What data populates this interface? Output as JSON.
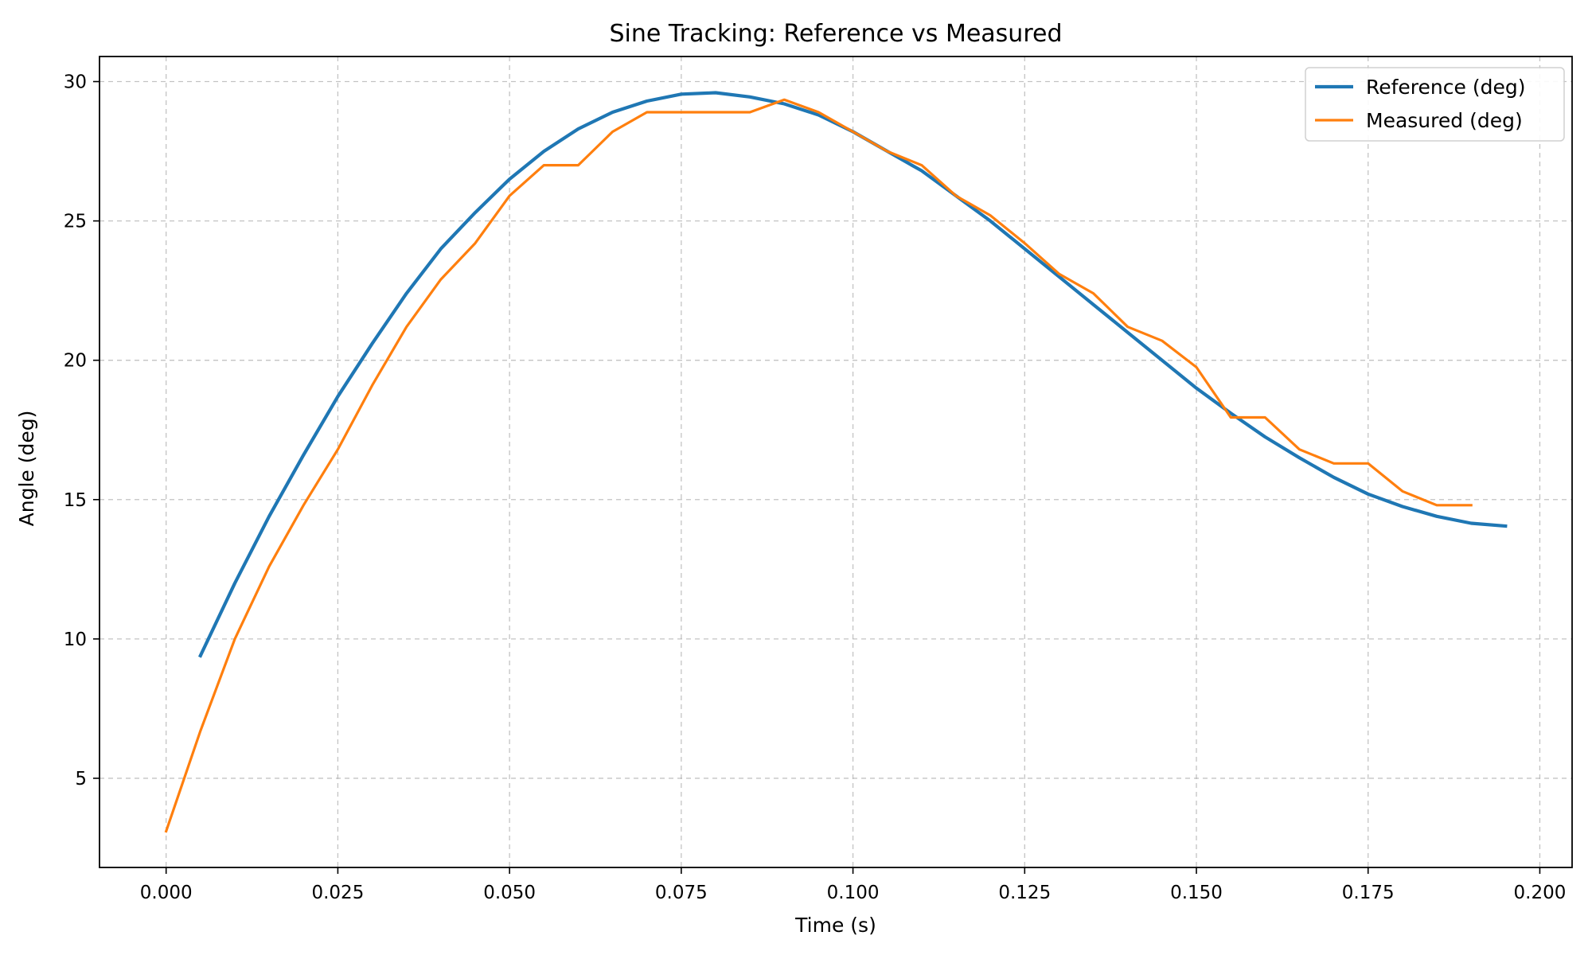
{
  "chart_data": {
    "type": "line",
    "title": "Sine Tracking: Reference vs Measured",
    "xlabel": "Time (s)",
    "ylabel": "Angle (deg)",
    "xlim": [
      -0.0097,
      0.2047
    ],
    "ylim": [
      1.8,
      30.9
    ],
    "x_ticks": [
      "0.000",
      "0.025",
      "0.050",
      "0.075",
      "0.100",
      "0.125",
      "0.150",
      "0.175",
      "0.200"
    ],
    "y_ticks": [
      "5",
      "10",
      "15",
      "20",
      "25",
      "30"
    ],
    "grid": true,
    "legend_position": "top-right",
    "series": [
      {
        "name": "Reference (deg)",
        "color": "#1f77b4",
        "x": [
          0.005,
          0.01,
          0.015,
          0.02,
          0.025,
          0.03,
          0.035,
          0.04,
          0.045,
          0.05,
          0.055,
          0.06,
          0.065,
          0.07,
          0.075,
          0.08,
          0.085,
          0.09,
          0.095,
          0.1,
          0.105,
          0.11,
          0.115,
          0.12,
          0.125,
          0.13,
          0.135,
          0.14,
          0.145,
          0.15,
          0.155,
          0.16,
          0.165,
          0.17,
          0.175,
          0.18,
          0.185,
          0.19,
          0.195
        ],
        "y": [
          9.4,
          12.0,
          14.4,
          16.6,
          18.7,
          20.6,
          22.4,
          24.0,
          25.3,
          26.5,
          27.5,
          28.3,
          28.9,
          29.3,
          29.55,
          29.6,
          29.45,
          29.2,
          28.8,
          28.2,
          27.5,
          26.8,
          25.9,
          25.0,
          24.0,
          23.0,
          22.0,
          21.0,
          20.0,
          19.0,
          18.1,
          17.25,
          16.5,
          15.8,
          15.2,
          14.75,
          14.4,
          14.15,
          14.05
        ]
      },
      {
        "name": "Measured (deg)",
        "color": "#ff7f0e",
        "x": [
          0.0,
          0.005,
          0.01,
          0.015,
          0.02,
          0.025,
          0.03,
          0.035,
          0.04,
          0.045,
          0.05,
          0.055,
          0.06,
          0.065,
          0.07,
          0.075,
          0.08,
          0.085,
          0.09,
          0.095,
          0.1,
          0.105,
          0.11,
          0.115,
          0.12,
          0.125,
          0.13,
          0.135,
          0.14,
          0.145,
          0.15,
          0.155,
          0.16,
          0.165,
          0.17,
          0.175,
          0.18,
          0.185,
          0.19
        ],
        "y": [
          3.1,
          6.7,
          10.0,
          12.6,
          14.8,
          16.8,
          19.1,
          21.2,
          22.9,
          24.2,
          25.9,
          27.0,
          27.0,
          28.2,
          28.9,
          28.9,
          28.9,
          28.9,
          29.35,
          28.9,
          28.2,
          27.5,
          27.0,
          25.9,
          25.2,
          24.2,
          23.1,
          22.4,
          21.2,
          20.7,
          19.75,
          17.95,
          17.95,
          16.8,
          16.3,
          16.3,
          15.3,
          14.8,
          14.8
        ]
      }
    ]
  }
}
